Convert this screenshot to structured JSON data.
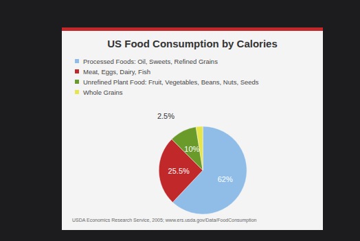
{
  "chart_data": {
    "type": "pie",
    "title": "US Food Consumption by Calories",
    "categories": [
      "Processed Foods: Oil, Sweets, Refined Grains",
      "Meat, Eggs, Dairy, Fish",
      "Unrefined Plant Food: Fruit, Vegetables, Beans, Nuts, Seeds",
      "Whole Grains"
    ],
    "values": [
      62,
      25.5,
      10,
      2.5
    ],
    "value_labels": [
      "62%",
      "25.5%",
      "10%",
      "2.5%"
    ],
    "colors": [
      "#8fbde8",
      "#c0282a",
      "#6a9a2a",
      "#e6e64a"
    ],
    "data_labels": true,
    "legend": "top-left",
    "annotations": [
      "USDA Economics Research Service, 2005; www.ers.usda.gov/Data/FoodConsumption"
    ]
  }
}
